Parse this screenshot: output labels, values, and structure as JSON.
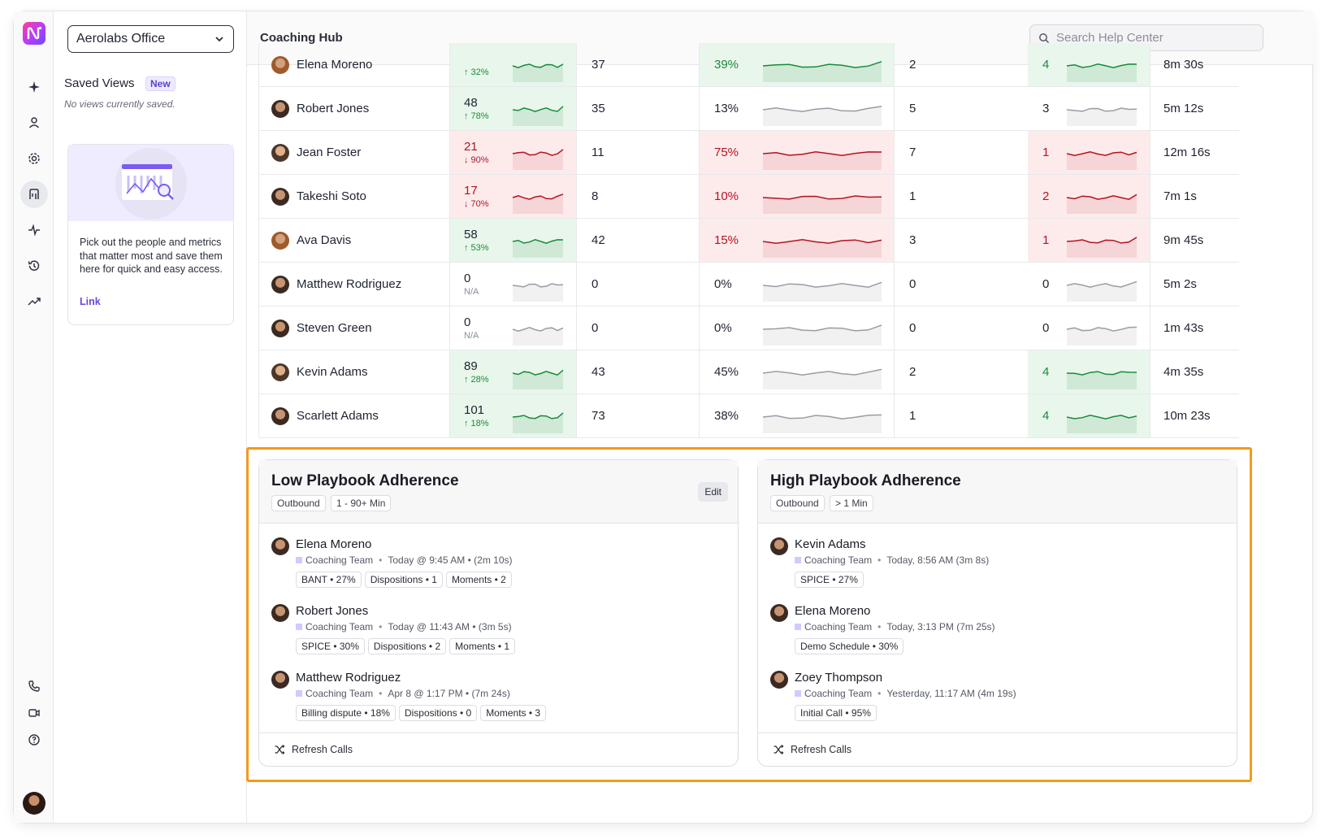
{
  "workspace": {
    "selected": "Aerolabs Office"
  },
  "saved_views": {
    "title": "Saved Views",
    "badge": "New",
    "empty_text": "No views currently saved.",
    "promo_text": "Pick out the people and metrics that matter most and save them here for quick and easy access.",
    "promo_link": "Link"
  },
  "header": {
    "title": "Coaching Hub",
    "search_placeholder": "Search Help Center"
  },
  "rows": [
    {
      "name": "Elena Moreno",
      "m1": "",
      "m1_sub": "↑ 32%",
      "m2": "37",
      "m3": "39%",
      "m4": "2",
      "m5": "4",
      "m6": "8m 30s"
    },
    {
      "name": "Robert Jones",
      "m1": "48",
      "m1_sub": "↑ 78%",
      "m2": "35",
      "m3": "13%",
      "m4": "5",
      "m5": "3",
      "m6": "5m 12s"
    },
    {
      "name": "Jean Foster",
      "m1": "21",
      "m1_sub": "↓ 90%",
      "m2": "11",
      "m3": "75%",
      "m4": "7",
      "m5": "1",
      "m6": "12m 16s"
    },
    {
      "name": "Takeshi Soto",
      "m1": "17",
      "m1_sub": "↓ 70%",
      "m2": "8",
      "m3": "10%",
      "m4": "1",
      "m5": "2",
      "m6": "7m 1s"
    },
    {
      "name": "Ava Davis",
      "m1": "58",
      "m1_sub": "↑ 53%",
      "m2": "42",
      "m3": "15%",
      "m4": "3",
      "m5": "1",
      "m6": "9m 45s"
    },
    {
      "name": "Matthew Rodriguez",
      "m1": "0",
      "m1_sub": "N/A",
      "m2": "0",
      "m3": "0%",
      "m4": "0",
      "m5": "0",
      "m6": "5m 2s"
    },
    {
      "name": "Steven Green",
      "m1": "0",
      "m1_sub": "N/A",
      "m2": "0",
      "m3": "0%",
      "m4": "0",
      "m5": "0",
      "m6": "1m 43s"
    },
    {
      "name": "Kevin Adams",
      "m1": "89",
      "m1_sub": "↑ 28%",
      "m2": "43",
      "m3": "45%",
      "m4": "2",
      "m5": "4",
      "m6": "4m 35s"
    },
    {
      "name": "Scarlett Adams",
      "m1": "101",
      "m1_sub": "↑ 18%",
      "m2": "73",
      "m3": "38%",
      "m4": "1",
      "m5": "4",
      "m6": "10m 23s"
    }
  ],
  "low_card": {
    "title": "Low Playbook Adherence",
    "chips": [
      "Outbound",
      "1 - 90+ Min"
    ],
    "edit_label": "Edit",
    "calls": [
      {
        "name": "Elena Moreno",
        "team": "Coaching Team",
        "when": "Today @ 9:45 AM • (2m 10s)",
        "tags": [
          "BANT • 27%",
          "Dispositions • 1",
          "Moments • 2"
        ]
      },
      {
        "name": "Robert Jones",
        "team": "Coaching Team",
        "when": "Today @ 11:43 AM • (3m 5s)",
        "tags": [
          "SPICE • 30%",
          "Dispositions • 2",
          "Moments • 1"
        ]
      },
      {
        "name": "Matthew Rodriguez",
        "team": "Coaching Team",
        "when": "Apr 8 @ 1:17 PM • (7m 24s)",
        "tags": [
          "Billing dispute • 18%",
          "Dispositions • 0",
          "Moments • 3"
        ]
      }
    ],
    "refresh_label": "Refresh Calls"
  },
  "high_card": {
    "title": "High Playbook Adherence",
    "chips": [
      "Outbound",
      "> 1 Min"
    ],
    "calls": [
      {
        "name": "Kevin Adams",
        "team": "Coaching Team",
        "when": "Today, 8:56 AM (3m 8s)",
        "tags": [
          "SPICE • 27%"
        ]
      },
      {
        "name": "Elena Moreno",
        "team": "Coaching Team",
        "when": "Today, 3:13 PM (7m 25s)",
        "tags": [
          "Demo Schedule • 30%"
        ]
      },
      {
        "name": "Zoey Thompson",
        "team": "Coaching Team",
        "when": "Yesterday, 11:17 AM (4m 19s)",
        "tags": [
          "Initial Call • 95%"
        ]
      }
    ],
    "refresh_label": "Refresh Calls"
  },
  "colors": {
    "accent": "#6b46e0",
    "highlight": "#f59a1b",
    "positive": "#1a8a3a",
    "negative": "#b3141f"
  }
}
